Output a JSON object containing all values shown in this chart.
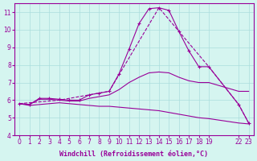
{
  "xlabel": "Windchill (Refroidissement éolien,°C)",
  "bg_color": "#d5f5f0",
  "line_color": "#990099",
  "grid_color": "#aadddd",
  "series": [
    {
      "x": [
        0,
        1,
        2,
        3,
        4,
        5,
        6,
        7,
        8,
        9,
        10,
        11,
        12,
        13,
        14,
        15,
        16,
        17,
        18,
        19,
        22,
        23
      ],
      "y": [
        5.8,
        5.75,
        6.1,
        6.1,
        6.05,
        6.0,
        6.0,
        6.3,
        6.4,
        6.5,
        7.5,
        8.9,
        10.35,
        11.2,
        11.25,
        11.1,
        9.9,
        8.8,
        7.9,
        7.9,
        5.75,
        4.7
      ],
      "marker": true
    },
    {
      "x": [
        0,
        1,
        2,
        3,
        4,
        5,
        6,
        7,
        8,
        9,
        10,
        11,
        12,
        13,
        14,
        15,
        16,
        17,
        18,
        19,
        22,
        23
      ],
      "y": [
        5.8,
        5.75,
        6.05,
        6.05,
        6.0,
        5.95,
        5.95,
        6.1,
        6.2,
        6.3,
        6.6,
        7.0,
        7.3,
        7.55,
        7.6,
        7.55,
        7.3,
        7.1,
        7.0,
        7.0,
        6.5,
        6.5
      ],
      "marker": false
    },
    {
      "x": [
        0,
        1,
        2,
        3,
        4,
        5,
        6,
        7,
        8,
        9,
        10,
        11,
        12,
        13,
        14,
        15,
        16,
        17,
        18,
        19,
        22,
        23
      ],
      "y": [
        5.8,
        5.7,
        5.75,
        5.8,
        5.85,
        5.8,
        5.75,
        5.7,
        5.65,
        5.65,
        5.6,
        5.55,
        5.5,
        5.45,
        5.4,
        5.3,
        5.2,
        5.1,
        5.0,
        4.95,
        4.7,
        4.65
      ],
      "marker": false
    },
    {
      "x": [
        0,
        4,
        9,
        14,
        19,
        22,
        23
      ],
      "y": [
        5.8,
        6.0,
        6.5,
        11.25,
        7.9,
        5.75,
        4.7
      ],
      "marker": false,
      "linestyle": "--"
    }
  ],
  "xlim": [
    -0.5,
    23.5
  ],
  "ylim": [
    4,
    11.5
  ],
  "xticks": [
    0,
    1,
    2,
    3,
    4,
    5,
    6,
    7,
    8,
    9,
    10,
    11,
    12,
    13,
    14,
    15,
    16,
    17,
    18,
    19,
    22,
    23
  ],
  "yticks": [
    4,
    5,
    6,
    7,
    8,
    9,
    10,
    11
  ],
  "tick_fontsize": 5.5,
  "label_fontsize": 6
}
